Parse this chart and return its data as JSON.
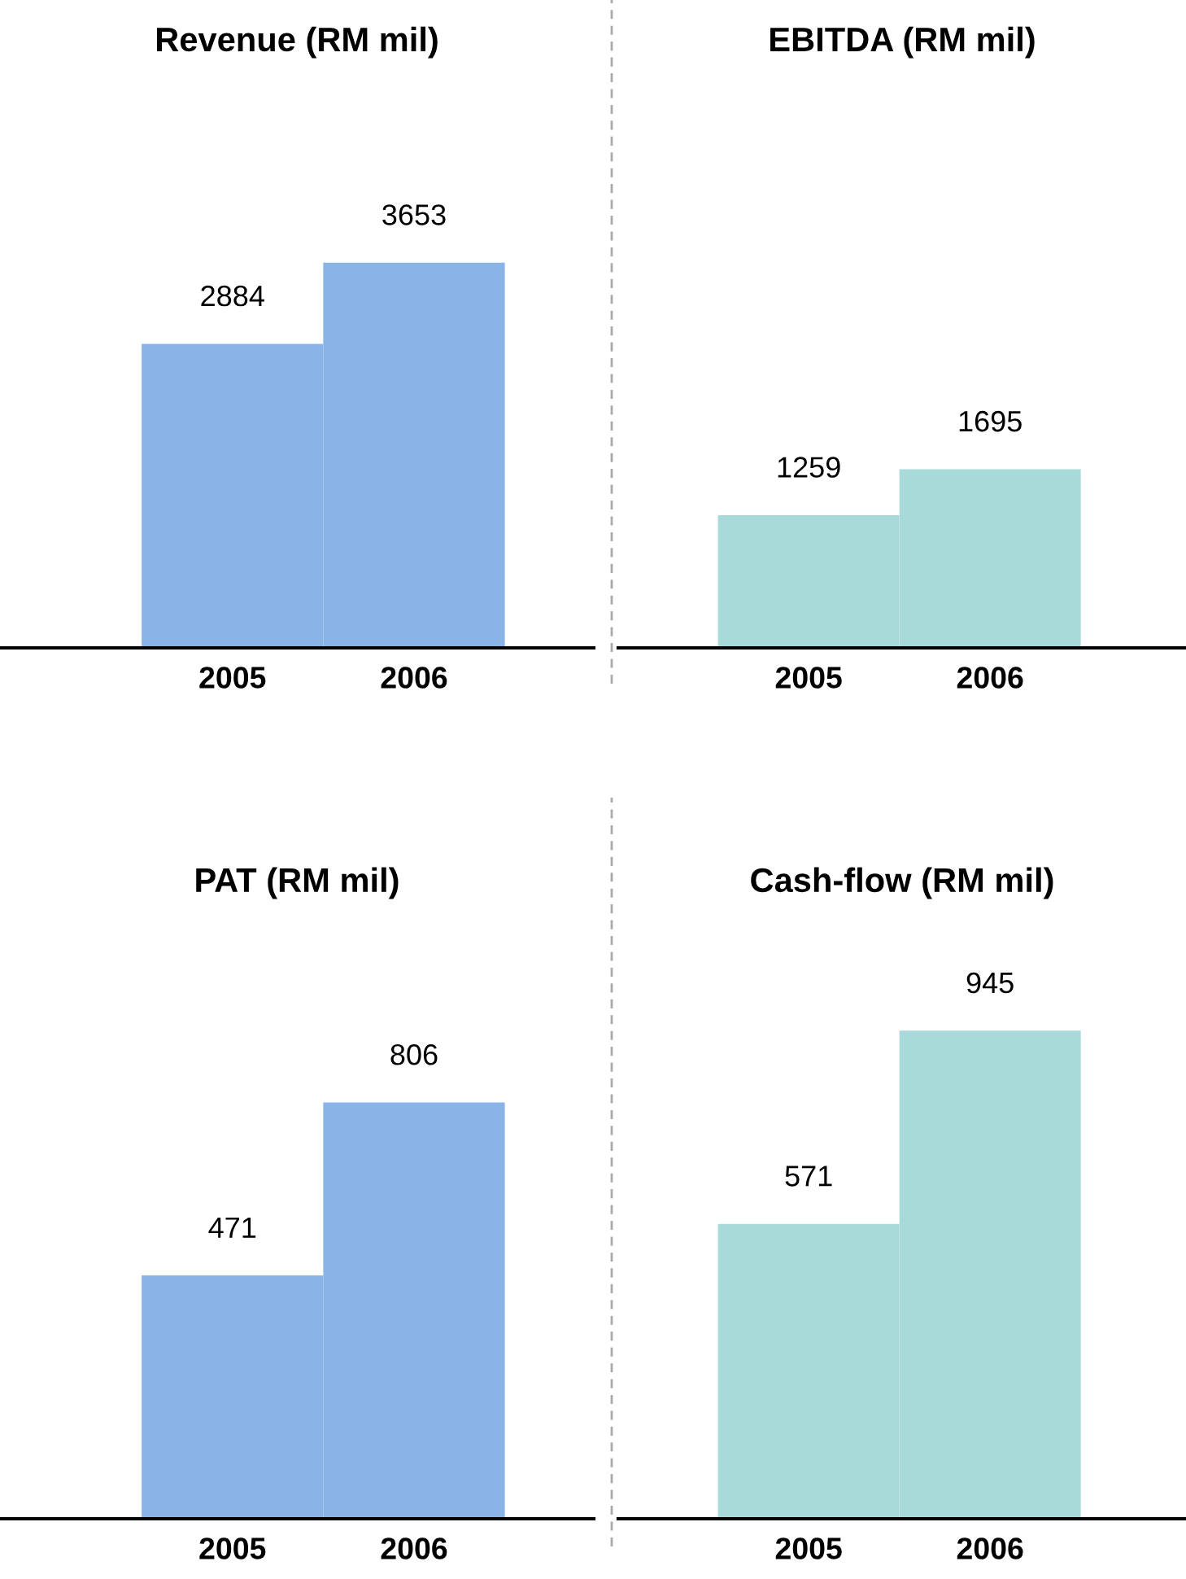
{
  "chart_data": [
    {
      "type": "bar",
      "title": "Revenue (RM mil)",
      "categories": [
        "2005",
        "2006"
      ],
      "values": [
        2884,
        3653
      ],
      "color": "#8ab4e6",
      "data_labels": true,
      "tick_labels": "x",
      "grid": false,
      "legend": false
    },
    {
      "type": "bar",
      "title": "EBITDA (RM mil)",
      "categories": [
        "2005",
        "2006"
      ],
      "values": [
        1259,
        1695
      ],
      "color": "#a8dada",
      "data_labels": true,
      "tick_labels": "x",
      "grid": false,
      "legend": false
    },
    {
      "type": "bar",
      "title": "PAT (RM mil)",
      "categories": [
        "2005",
        "2006"
      ],
      "values": [
        471,
        806
      ],
      "color": "#8ab4e6",
      "data_labels": true,
      "tick_labels": "x",
      "grid": false,
      "legend": false
    },
    {
      "type": "bar",
      "title": "Cash-flow (RM mil)",
      "categories": [
        "2005",
        "2006"
      ],
      "values": [
        571,
        945
      ],
      "color": "#a8dada",
      "data_labels": true,
      "tick_labels": "x",
      "grid": false,
      "legend": false
    }
  ]
}
